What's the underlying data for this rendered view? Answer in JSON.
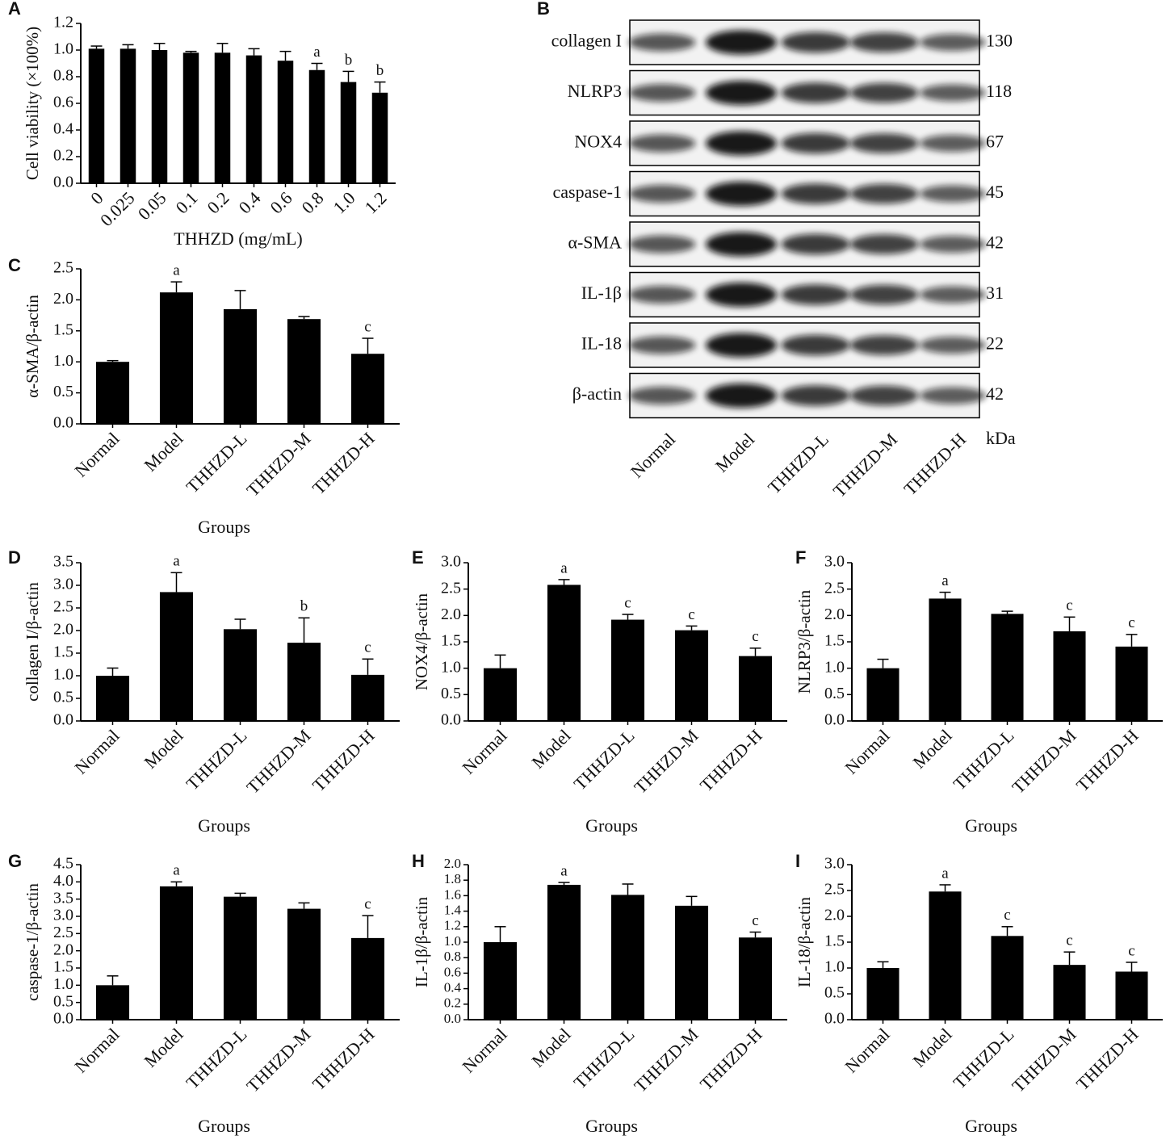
{
  "chart_data": [
    {
      "type": "bar",
      "panel": "A",
      "xlabel": "THHZD (mg/mL)",
      "ylabel": "Cell viability (×100%)",
      "categories": [
        "0",
        "0.025",
        "0.05",
        "0.1",
        "0.2",
        "0.4",
        "0.6",
        "0.8",
        "1.0",
        "1.2"
      ],
      "values": [
        1.01,
        1.01,
        1.0,
        0.98,
        0.98,
        0.96,
        0.92,
        0.85,
        0.76,
        0.68
      ],
      "errors": [
        0.02,
        0.03,
        0.05,
        0.01,
        0.07,
        0.05,
        0.07,
        0.05,
        0.08,
        0.08
      ],
      "annotations": [
        null,
        null,
        null,
        null,
        null,
        null,
        null,
        "a",
        "b",
        "b"
      ],
      "color": "#000000",
      "ylim": [
        0,
        1.2
      ],
      "yticks": [
        {
          "value": 0,
          "label": "0.0"
        },
        0.2,
        0.4,
        0.6,
        0.8,
        {
          "value": 1,
          "label": "1.0"
        },
        1.2
      ]
    },
    {
      "type": "blot",
      "panel": "B",
      "unit": "kDa",
      "rows": [
        {
          "name": "collagen I",
          "kda": 130
        },
        {
          "name": "NLRP3",
          "kda": 118
        },
        {
          "name": "NOX4",
          "kda": 67
        },
        {
          "name": "caspase-1",
          "kda": 45
        },
        {
          "name": "α-SMA",
          "kda": 42
        },
        {
          "name": "IL-1β",
          "kda": 31
        },
        {
          "name": "IL-18",
          "kda": 22
        },
        {
          "name": "β-actin",
          "kda": 42
        }
      ],
      "categories": [
        "Normal",
        "Model",
        "THHZD-L",
        "THHZD-M",
        "THHZD-H"
      ]
    },
    {
      "type": "bar",
      "panel": "C",
      "xlabel": "Groups",
      "ylabel": "α-SMA/β-actin",
      "categories": [
        "Normal",
        "Model",
        "THHZD-L",
        "THHZD-M",
        "THHZD-H"
      ],
      "values": [
        1.0,
        2.12,
        1.85,
        1.69,
        1.13
      ],
      "errors": [
        0.02,
        0.17,
        0.3,
        0.04,
        0.25
      ],
      "annotations": [
        null,
        "a",
        null,
        null,
        "c"
      ],
      "color": "#000000",
      "ylim": [
        0,
        2.5
      ],
      "yticks": [
        {
          "value": 0,
          "label": "0.0"
        },
        0.5,
        {
          "value": 1,
          "label": "1.0"
        },
        1.5,
        {
          "value": 2,
          "label": "2.0"
        },
        2.5
      ]
    },
    {
      "type": "bar",
      "panel": "D",
      "xlabel": "Groups",
      "ylabel": "collagen I/β-actin",
      "categories": [
        "Normal",
        "Model",
        "THHZD-L",
        "THHZD-M",
        "THHZD-H"
      ],
      "values": [
        1.0,
        2.85,
        2.03,
        1.73,
        1.02
      ],
      "errors": [
        0.17,
        0.43,
        0.22,
        0.55,
        0.35
      ],
      "annotations": [
        null,
        "a",
        null,
        "b",
        "c"
      ],
      "color": "#000000",
      "ylim": [
        0,
        3.5
      ],
      "yticks": [
        {
          "value": 0,
          "label": "0.0"
        },
        0.5,
        {
          "value": 1,
          "label": "1.0"
        },
        1.5,
        {
          "value": 2,
          "label": "2.0"
        },
        2.5,
        {
          "value": 3,
          "label": "3.0"
        },
        3.5
      ]
    },
    {
      "type": "bar",
      "panel": "E",
      "xlabel": "Groups",
      "ylabel": "NOX4/β-actin",
      "categories": [
        "Normal",
        "Model",
        "THHZD-L",
        "THHZD-M",
        "THHZD-H"
      ],
      "values": [
        1.0,
        2.58,
        1.92,
        1.72,
        1.23
      ],
      "errors": [
        0.25,
        0.1,
        0.1,
        0.08,
        0.15
      ],
      "annotations": [
        null,
        "a",
        "c",
        "c",
        "c"
      ],
      "color": "#000000",
      "ylim": [
        0,
        3
      ],
      "yticks": [
        {
          "value": 0,
          "label": "0.0"
        },
        0.5,
        {
          "value": 1,
          "label": "1.0"
        },
        1.5,
        {
          "value": 2,
          "label": "2.0"
        },
        2.5,
        {
          "value": 3,
          "label": "3.0"
        }
      ]
    },
    {
      "type": "bar",
      "panel": "F",
      "xlabel": "Groups",
      "ylabel": "NLRP3/β-actin",
      "categories": [
        "Normal",
        "Model",
        "THHZD-L",
        "THHZD-M",
        "THHZD-H"
      ],
      "values": [
        1.0,
        2.32,
        2.03,
        1.7,
        1.41
      ],
      "errors": [
        0.17,
        0.12,
        0.05,
        0.27,
        0.23
      ],
      "annotations": [
        null,
        "a",
        null,
        "c",
        "c"
      ],
      "color": "#000000",
      "ylim": [
        0,
        3
      ],
      "yticks": [
        {
          "value": 0,
          "label": "0.0"
        },
        0.5,
        {
          "value": 1,
          "label": "1.0"
        },
        1.5,
        {
          "value": 2,
          "label": "2.0"
        },
        2.5,
        {
          "value": 3,
          "label": "3.0"
        }
      ]
    },
    {
      "type": "bar",
      "panel": "G",
      "xlabel": "Groups",
      "ylabel": "caspase-1/β-actin",
      "categories": [
        "Normal",
        "Model",
        "THHZD-L",
        "THHZD-M",
        "THHZD-H"
      ],
      "values": [
        1.0,
        3.87,
        3.57,
        3.22,
        2.37
      ],
      "errors": [
        0.27,
        0.13,
        0.1,
        0.17,
        0.65
      ],
      "annotations": [
        null,
        "a",
        null,
        null,
        "c"
      ],
      "color": "#000000",
      "ylim": [
        0,
        4.5
      ],
      "yticks": [
        {
          "value": 0,
          "label": "0.0"
        },
        0.5,
        {
          "value": 1,
          "label": "1.0"
        },
        1.5,
        {
          "value": 2,
          "label": "2.0"
        },
        2.5,
        {
          "value": 3,
          "label": "3.0"
        },
        3.5,
        {
          "value": 4,
          "label": "4.0"
        },
        4.5
      ]
    },
    {
      "type": "bar",
      "panel": "H",
      "xlabel": "Groups",
      "ylabel": "IL-1β/β-actin",
      "categories": [
        "Normal",
        "Model",
        "THHZD-L",
        "THHZD-M",
        "THHZD-H"
      ],
      "values": [
        1.0,
        1.74,
        1.61,
        1.47,
        1.06
      ],
      "errors": [
        0.2,
        0.03,
        0.14,
        0.12,
        0.07
      ],
      "annotations": [
        null,
        "a",
        null,
        null,
        "c"
      ],
      "color": "#000000",
      "ylim": [
        0,
        2
      ],
      "yticks": [
        {
          "value": 0,
          "label": "0.0"
        },
        0.2,
        0.4,
        0.6,
        0.8,
        {
          "value": 1,
          "label": "1.0"
        },
        1.2,
        1.4,
        1.6,
        1.8,
        {
          "value": 2,
          "label": "2.0"
        }
      ]
    },
    {
      "type": "bar",
      "panel": "I",
      "xlabel": "Groups",
      "ylabel": "IL-18/β-actin",
      "categories": [
        "Normal",
        "Model",
        "THHZD-L",
        "THHZD-M",
        "THHZD-H"
      ],
      "values": [
        1.0,
        2.48,
        1.62,
        1.06,
        0.93
      ],
      "errors": [
        0.12,
        0.13,
        0.18,
        0.25,
        0.18
      ],
      "annotations": [
        null,
        "a",
        "c",
        "c",
        "c"
      ],
      "color": "#000000",
      "ylim": [
        0,
        3
      ],
      "yticks": [
        {
          "value": 0,
          "label": "0.0"
        },
        0.5,
        {
          "value": 1,
          "label": "1.0"
        },
        1.5,
        {
          "value": 2,
          "label": "2.0"
        },
        2.5,
        {
          "value": 3,
          "label": "3.0"
        }
      ]
    }
  ]
}
